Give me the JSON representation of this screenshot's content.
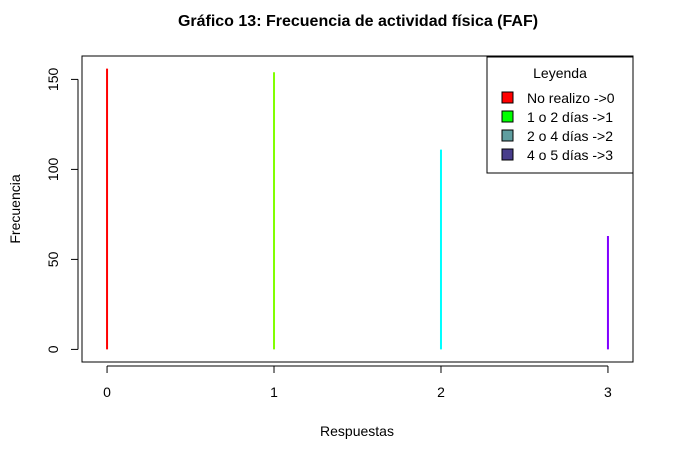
{
  "chart_data": {
    "type": "bar",
    "title": "Gráfico 13: Frecuencia de actividad física  (FAF)",
    "xlabel": "Respuestas",
    "ylabel": "Frecuencia",
    "x": [
      0,
      1,
      2,
      3
    ],
    "x_tick_labels": [
      "0",
      "1",
      "2",
      "3"
    ],
    "values": [
      156,
      154,
      111,
      63
    ],
    "bar_colors": [
      "#ff0000",
      "#80ff00",
      "#00ffff",
      "#8000ff"
    ],
    "xlim": [
      -0.15,
      3.15
    ],
    "ylim": [
      -7,
      163
    ],
    "y_ticks": [
      0,
      50,
      100,
      150
    ],
    "y_tick_labels": [
      "0",
      "50",
      "100",
      "150"
    ],
    "grid": false,
    "legend": {
      "title": "Leyenda",
      "position": "top-right",
      "entries": [
        {
          "label": "No realizo ->0",
          "color": "#ff0000"
        },
        {
          "label": "1 o 2 días ->1",
          "color": "#00ff00"
        },
        {
          "label": "2 o 4 días ->2",
          "color": "#5f9ea0"
        },
        {
          "label": "4 o 5 días ->3",
          "color": "#483d8b"
        }
      ]
    }
  }
}
